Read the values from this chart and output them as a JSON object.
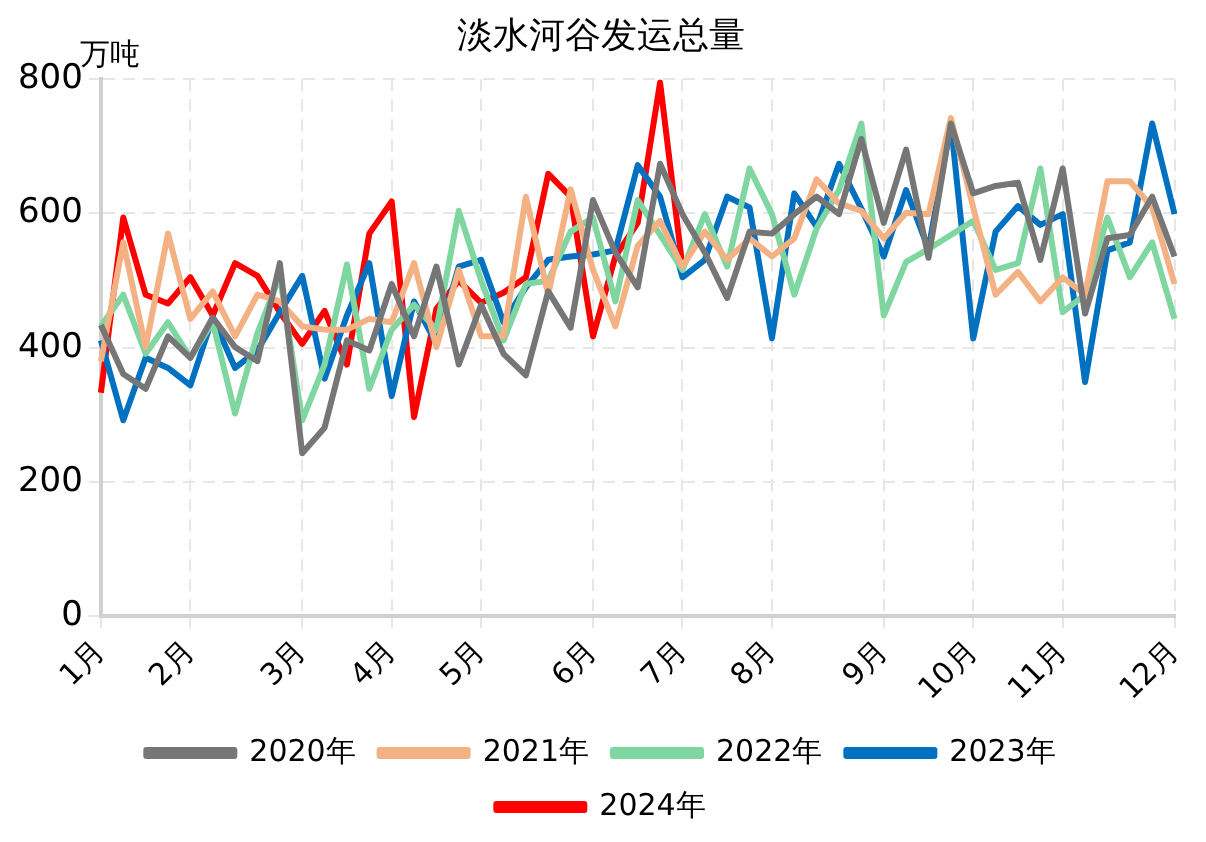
{
  "chart_data": {
    "type": "line",
    "title": "淡水河谷发运总量",
    "ylabel": "万吨",
    "categories": [
      "1月",
      null,
      null,
      null,
      "2月",
      null,
      null,
      null,
      null,
      "3月",
      null,
      null,
      null,
      "4月",
      null,
      null,
      null,
      "5月",
      null,
      null,
      null,
      null,
      "6月",
      null,
      null,
      null,
      "7月",
      null,
      null,
      null,
      "8月",
      null,
      null,
      null,
      null,
      "9月",
      null,
      null,
      null,
      "10月",
      null,
      null,
      null,
      "11月",
      null,
      null,
      null,
      null,
      "12月"
    ],
    "ylim": [
      0,
      800
    ],
    "yticks": [
      0,
      200,
      400,
      600,
      800
    ],
    "grid": true,
    "legend": "bottom",
    "series": [
      {
        "name": "2020年",
        "color": "#767676",
        "values": [
          434,
          361,
          339,
          417,
          385,
          445,
          401,
          380,
          526,
          243,
          281,
          411,
          396,
          495,
          417,
          521,
          375,
          464,
          391,
          359,
          484,
          430,
          620,
          542,
          490,
          674,
          599,
          542,
          474,
          573,
          570,
          599,
          625,
          599,
          711,
          586,
          695,
          534,
          734,
          630,
          641,
          646,
          531,
          667,
          451,
          563,
          568,
          625,
          536
        ]
      },
      {
        "name": "2021年",
        "color": "#f4b183",
        "values": [
          380,
          557,
          401,
          570,
          443,
          484,
          417,
          479,
          469,
          432,
          427,
          427,
          443,
          438,
          526,
          401,
          516,
          417,
          417,
          625,
          479,
          636,
          516,
          432,
          552,
          589,
          521,
          573,
          531,
          563,
          536,
          563,
          651,
          615,
          604,
          563,
          601,
          599,
          742,
          609,
          479,
          513,
          469,
          505,
          479,
          648,
          648,
          609,
          495
        ]
      },
      {
        "name": "2022年",
        "color": "#7fd6a0",
        "values": [
          432,
          479,
          391,
          438,
          385,
          438,
          302,
          422,
          507,
          292,
          375,
          524,
          339,
          427,
          464,
          427,
          604,
          500,
          411,
          495,
          500,
          573,
          594,
          469,
          620,
          568,
          516,
          599,
          521,
          667,
          599,
          479,
          578,
          635,
          734,
          448,
          528,
          547,
          568,
          589,
          516,
          526,
          667,
          453,
          479,
          594,
          505,
          557,
          443
        ]
      },
      {
        "name": "2023年",
        "color": "#0070c0",
        "values": [
          411,
          292,
          385,
          370,
          344,
          445,
          370,
          396,
          453,
          507,
          354,
          448,
          526,
          328,
          469,
          406,
          521,
          531,
          438,
          490,
          531,
          536,
          539,
          545,
          672,
          625,
          505,
          531,
          625,
          609,
          414,
          630,
          580,
          674,
          607,
          536,
          635,
          547,
          734,
          414,
          573,
          611,
          583,
          599,
          349,
          545,
          557,
          734,
          599
        ]
      },
      {
        "name": "2024年",
        "color": "#ff0000",
        "values": [
          333,
          594,
          479,
          466,
          505,
          448,
          526,
          507,
          453,
          406,
          455,
          375,
          570,
          618,
          297,
          458,
          500,
          467,
          482,
          505,
          659,
          625,
          417,
          536,
          586,
          795,
          521,
          null,
          null,
          null,
          null,
          null,
          null,
          null,
          null,
          null,
          null,
          null,
          null,
          null,
          null,
          null,
          null,
          null,
          null,
          null,
          null,
          null,
          null
        ]
      }
    ]
  }
}
